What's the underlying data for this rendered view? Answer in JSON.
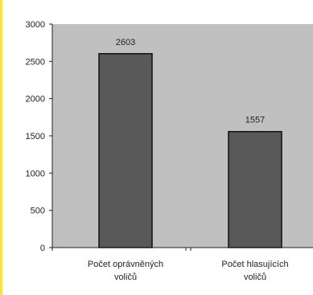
{
  "chart_data": {
    "type": "bar",
    "categories": [
      [
        "Počet oprávněných",
        "voličů"
      ],
      [
        "Počet hlasujících",
        "voličů"
      ]
    ],
    "values": [
      2603,
      1557
    ],
    "data_labels": [
      "2603",
      "1557"
    ],
    "ylim": [
      0,
      3000
    ],
    "yticks": [
      0,
      500,
      1000,
      1500,
      2000,
      2500,
      3000
    ],
    "grid": false,
    "legend": "none",
    "title": "",
    "xlabel": "",
    "ylabel": "",
    "colors": {
      "plot_background": "#c0c0c0",
      "bar_fill": "#595959",
      "bar_stroke": "#111111",
      "axis": "#222222"
    }
  }
}
